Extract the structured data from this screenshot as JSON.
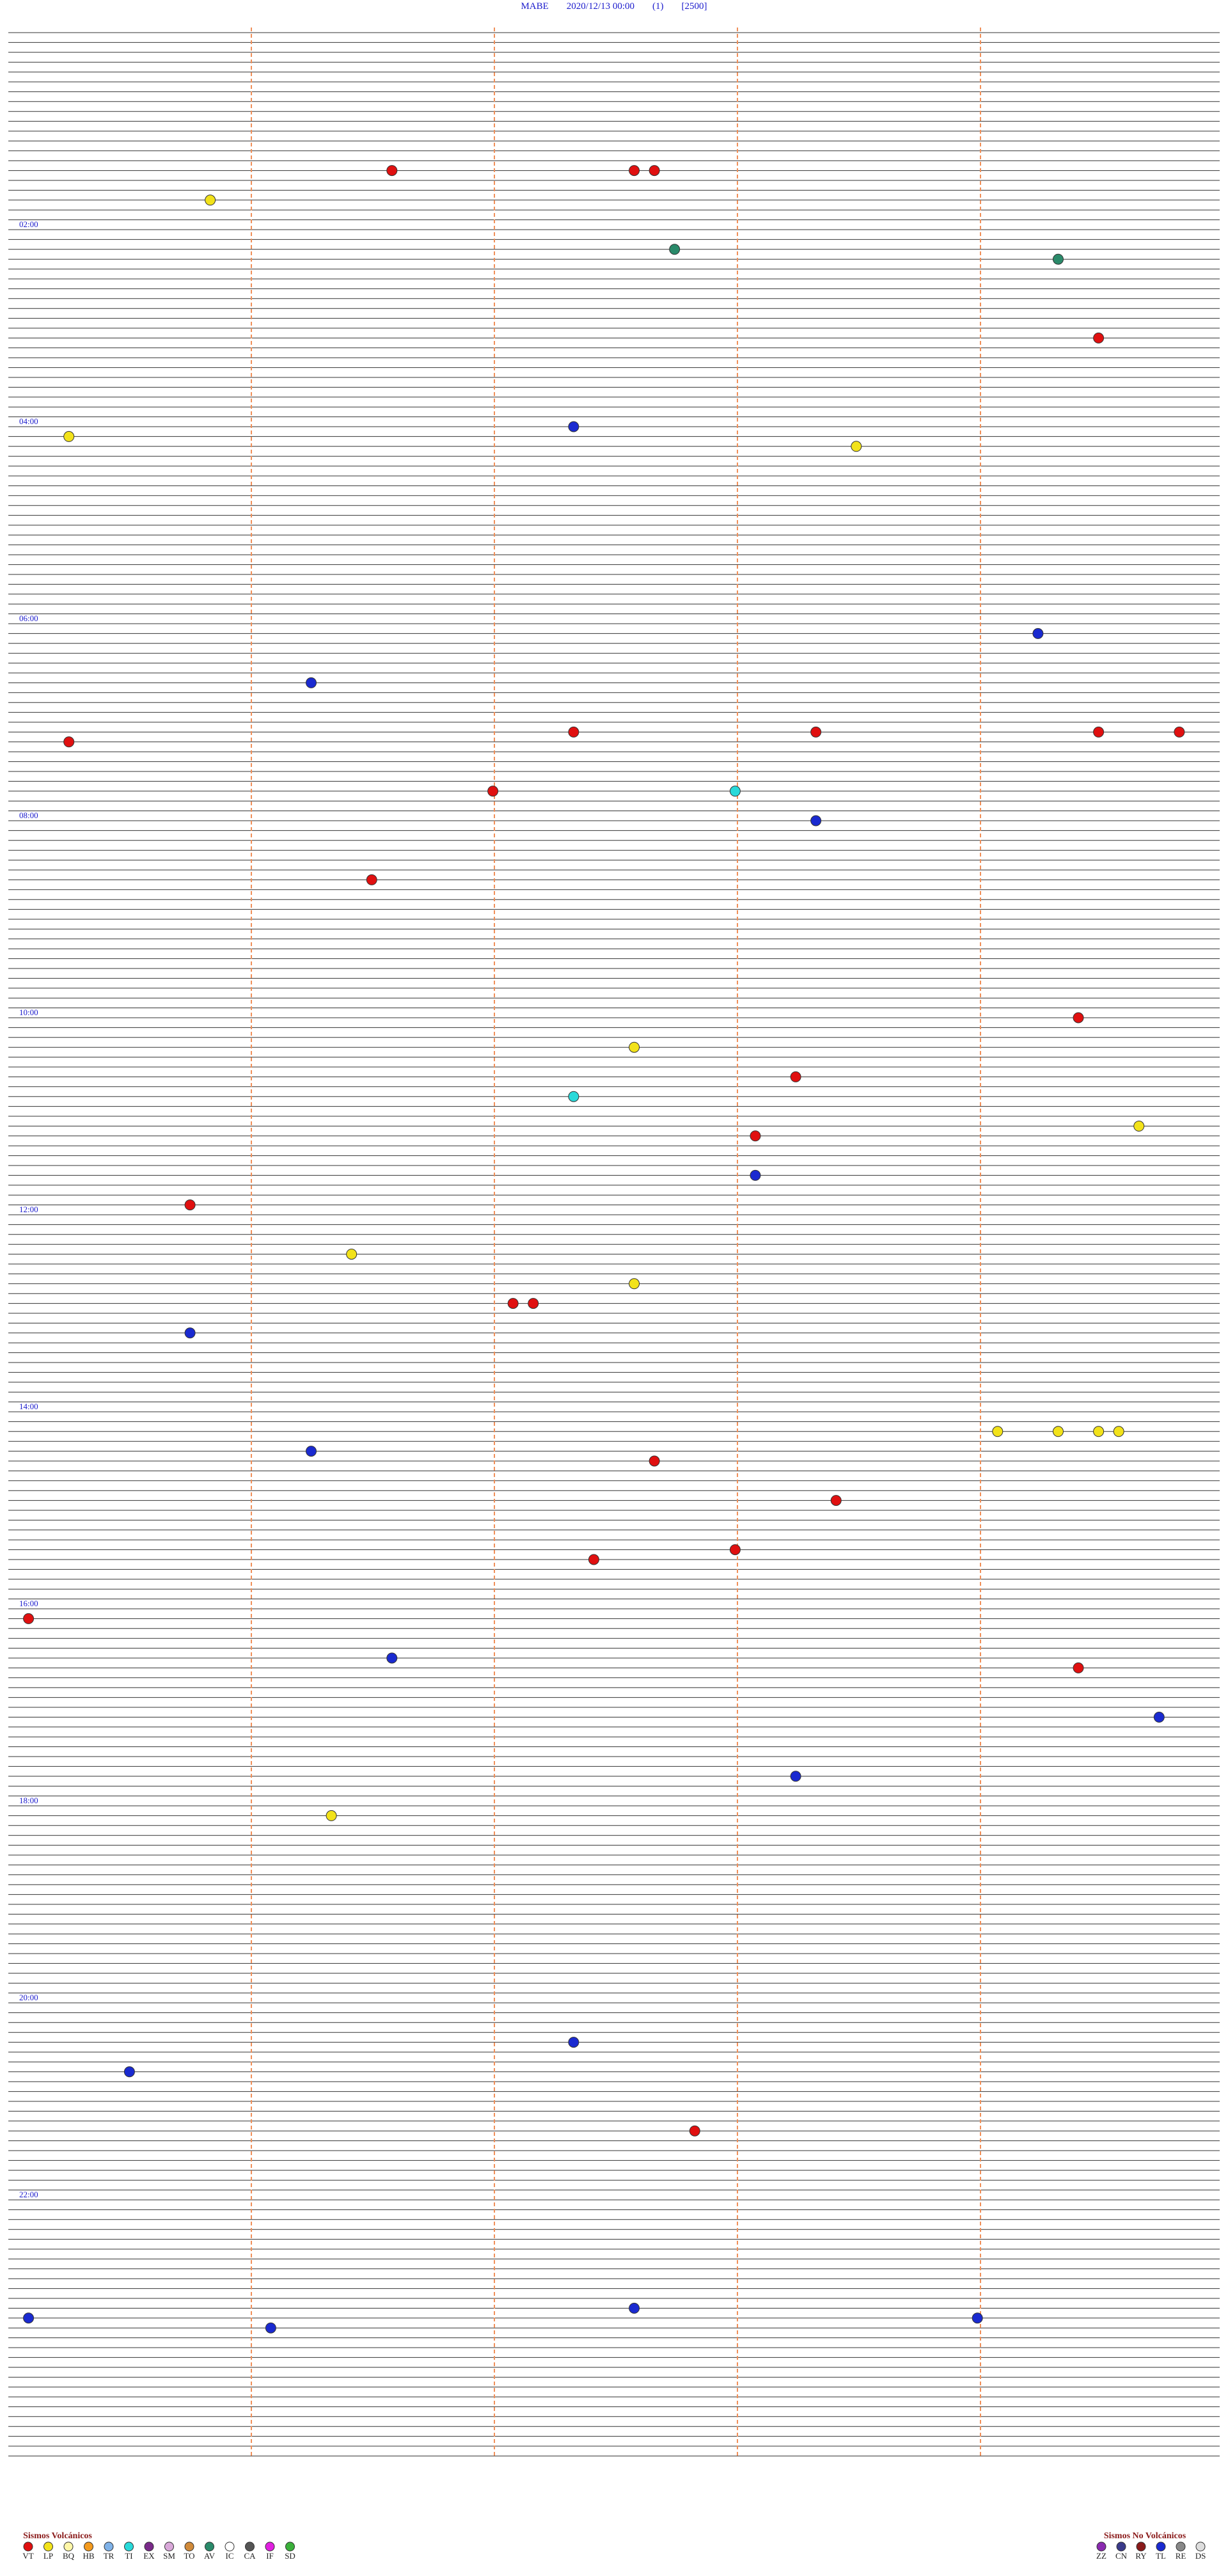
{
  "header": {
    "station": "MABE",
    "datetime": "2020/12/13 00:00",
    "channel": "(1)",
    "scale": "[2500]"
  },
  "hour_labels": [
    "02:00",
    "04:00",
    "06:00",
    "08:00",
    "10:00",
    "12:00",
    "14:00",
    "16:00",
    "18:00",
    "20:00",
    "22:00"
  ],
  "legend_volcanic": {
    "title": "Sismos Volcánicos",
    "items": [
      {
        "code": "VT",
        "color": "#e01010"
      },
      {
        "code": "LP",
        "color": "#f2e21a"
      },
      {
        "code": "BQ",
        "color": "#fff7a8"
      },
      {
        "code": "HB",
        "color": "#f39a1e"
      },
      {
        "code": "TR",
        "color": "#7fb2e8"
      },
      {
        "code": "TI",
        "color": "#29d9d9"
      },
      {
        "code": "EX",
        "color": "#7a2a8a"
      },
      {
        "code": "SM",
        "color": "#d9a8d9"
      },
      {
        "code": "TO",
        "color": "#d08a3a"
      },
      {
        "code": "AV",
        "color": "#2a8a6a"
      },
      {
        "code": "IC",
        "color": "#ffffff"
      },
      {
        "code": "CA",
        "color": "#555555"
      },
      {
        "code": "IF",
        "color": "#e020e0"
      },
      {
        "code": "SD",
        "color": "#3ab03a"
      }
    ]
  },
  "legend_non_volcanic": {
    "title": "Sismos No Volcánicos",
    "items": [
      {
        "code": "ZZ",
        "color": "#8a2ab0"
      },
      {
        "code": "CN",
        "color": "#3a3a8a"
      },
      {
        "code": "RY",
        "color": "#8a1a1a"
      },
      {
        "code": "TL",
        "color": "#1a2ad0"
      },
      {
        "code": "RE",
        "color": "#888888"
      },
      {
        "code": "DS",
        "color": "#dddddd"
      }
    ]
  },
  "events": [
    {
      "type": "VT",
      "minute": 85.9
    },
    {
      "type": "VT",
      "minute": 87.1
    },
    {
      "type": "VT",
      "minute": 87.2
    },
    {
      "type": "LP",
      "minute": 103
    },
    {
      "type": "AV",
      "minute": 135.3
    },
    {
      "type": "AV",
      "minute": 143.2
    },
    {
      "type": "VT",
      "minute": 191.4
    },
    {
      "type": "TL",
      "minute": 242.8
    },
    {
      "type": "LP",
      "minute": 246.3
    },
    {
      "type": "LP",
      "minute": 256.2
    },
    {
      "type": "TL",
      "minute": 371.1
    },
    {
      "type": "TL",
      "minute": 397.5
    },
    {
      "type": "VT",
      "minute": 428.8
    },
    {
      "type": "VT",
      "minute": 430
    },
    {
      "type": "VT",
      "minute": 431.4
    },
    {
      "type": "VT",
      "minute": 431.8
    },
    {
      "type": "VT",
      "minute": 432.3
    },
    {
      "type": "VT",
      "minute": 464.4
    },
    {
      "type": "TI",
      "minute": 465.6
    },
    {
      "type": "TL",
      "minute": 484
    },
    {
      "type": "VT",
      "minute": 517.8
    },
    {
      "type": "VT",
      "minute": 605.3
    },
    {
      "type": "LP",
      "minute": 621.1
    },
    {
      "type": "VT",
      "minute": 639.9
    },
    {
      "type": "TI",
      "minute": 650.8
    },
    {
      "type": "LP",
      "minute": 671.6
    },
    {
      "type": "VT",
      "minute": 675.7
    },
    {
      "type": "TL",
      "minute": 699.7
    },
    {
      "type": "VT",
      "minute": 714.9
    },
    {
      "type": "LP",
      "minute": 745.7
    },
    {
      "type": "LP",
      "minute": 765.1
    },
    {
      "type": "VT",
      "minute": 776.5
    },
    {
      "type": "VT",
      "minute": 776.6
    },
    {
      "type": "TL",
      "minute": 792.9
    },
    {
      "type": "LP",
      "minute": 856.9
    },
    {
      "type": "LP",
      "minute": 857.2
    },
    {
      "type": "LP",
      "minute": 857.4
    },
    {
      "type": "LP",
      "minute": 857.5
    },
    {
      "type": "TL",
      "minute": 865.5
    },
    {
      "type": "VT",
      "minute": 873.2
    },
    {
      "type": "VT",
      "minute": 898.1
    },
    {
      "type": "VT",
      "minute": 927.6
    },
    {
      "type": "VT",
      "minute": 932.9
    },
    {
      "type": "VT",
      "minute": 966.1
    },
    {
      "type": "TL",
      "minute": 991.9
    },
    {
      "type": "VT",
      "minute": 1001.3
    },
    {
      "type": "TL",
      "minute": 1031.7
    },
    {
      "type": "TL",
      "minute": 1065.9
    },
    {
      "type": "LP",
      "minute": 1087.6
    },
    {
      "type": "TL",
      "minute": 1226.8
    },
    {
      "type": "TL",
      "minute": 1242.6
    },
    {
      "type": "VT",
      "minute": 1281.4
    },
    {
      "type": "TL",
      "minute": 1389.1
    },
    {
      "type": "TL",
      "minute": 1392.1
    },
    {
      "type": "TL",
      "minute": 1396.8
    },
    {
      "type": "TL",
      "minute": 1399.3
    }
  ]
}
